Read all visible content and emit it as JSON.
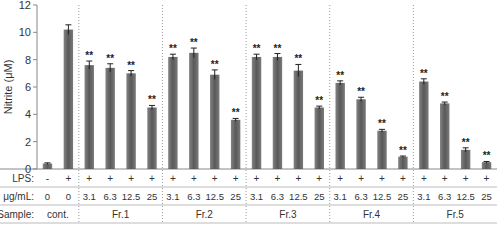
{
  "chart_data": {
    "type": "bar",
    "y_label": "Nitrite (μM)",
    "category_label": "μg/mL:",
    "categories": [
      "0",
      "0",
      "3.1",
      "6.3",
      "12.5",
      "25",
      "3.1",
      "6.3",
      "12.5",
      "25",
      "3.1",
      "6.3",
      "12.5",
      "25",
      "3.1",
      "6.3",
      "12.5",
      "25",
      "3.1",
      "6.3",
      "12.5",
      "25"
    ],
    "values": [
      0.4,
      10.2,
      7.6,
      7.4,
      7.0,
      4.5,
      8.2,
      8.5,
      6.9,
      3.6,
      8.2,
      8.2,
      7.2,
      4.5,
      6.3,
      5.1,
      2.8,
      0.9,
      6.4,
      4.8,
      1.4,
      0.5
    ],
    "errors": [
      0.05,
      0.35,
      0.3,
      0.3,
      0.2,
      0.15,
      0.2,
      0.35,
      0.35,
      0.1,
      0.2,
      0.25,
      0.45,
      0.1,
      0.15,
      0.15,
      0.1,
      0.05,
      0.2,
      0.1,
      0.15,
      0.05
    ],
    "significance": [
      null,
      null,
      "**",
      "**",
      "**",
      "**",
      "**",
      "**",
      "**",
      "**",
      "**",
      "**",
      "**",
      "**",
      "**",
      "**",
      "**",
      "**",
      "**",
      "**",
      "**",
      "**"
    ],
    "lps": {
      "label": "LPS:",
      "values": [
        "-",
        "+",
        "+",
        "+",
        "+",
        "+",
        "+",
        "+",
        "+",
        "+",
        "+",
        "+",
        "+",
        "+",
        "+",
        "+",
        "+",
        "+",
        "+",
        "+",
        "+",
        "+"
      ]
    },
    "groups": {
      "label": "Sample:",
      "values": [
        "cont.",
        "cont.",
        "Fr.1",
        "Fr.1",
        "Fr.1",
        "Fr.1",
        "Fr.2",
        "Fr.2",
        "Fr.2",
        "Fr.2",
        "Fr.3",
        "Fr.3",
        "Fr.3",
        "Fr.3",
        "Fr.4",
        "Fr.4",
        "Fr.4",
        "Fr.4",
        "Fr.5",
        "Fr.5",
        "Fr.5",
        "Fr.5"
      ]
    },
    "color": "#595959",
    "ylim": [
      0,
      12
    ],
    "yticks": [
      0,
      2,
      4,
      6,
      8,
      10,
      12
    ],
    "grid": false
  }
}
